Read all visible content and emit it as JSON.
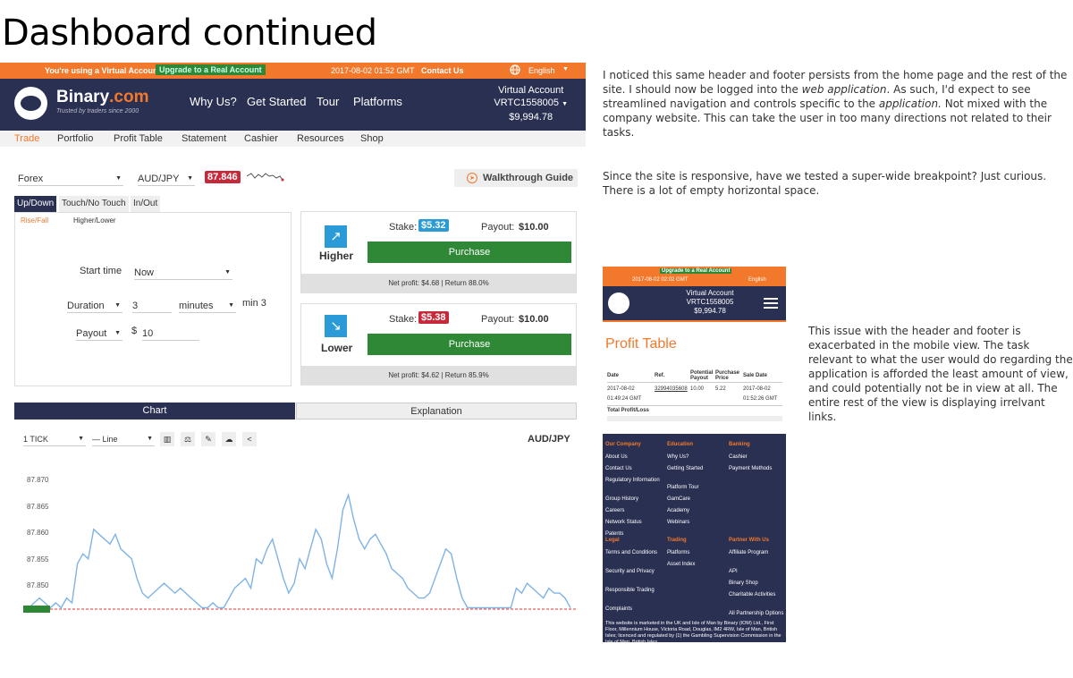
{
  "page_title": "Dashboard continued",
  "desktop": {
    "topbar": {
      "virtual_notice": "You're using a Virtual Account.",
      "upgrade": "Upgrade to a Real Account",
      "time": "2017-08-02 01:52 GMT",
      "contact": "Contact Us",
      "language": "English"
    },
    "header": {
      "brand_a": "Binary",
      "brand_b": ".com",
      "tagline": "Trusted by traders since 2000",
      "nav": [
        "Why Us?",
        "Get Started",
        "Tour",
        "Platforms"
      ],
      "account_label": "Virtual Account",
      "account_id": "VRTC1558005",
      "balance": "$9,994.78"
    },
    "menu": [
      "Trade",
      "Portfolio",
      "Profit Table",
      "Statement",
      "Cashier",
      "Resources",
      "Shop"
    ],
    "market": "Forex",
    "pair": "AUD/JPY",
    "spot": "87.846",
    "walkthrough": "Walkthrough Guide",
    "trade_tabs": [
      "Up/Down",
      "Touch/No Touch",
      "In/Out"
    ],
    "sub_tabs": [
      "Rise/Fall",
      "Higher/Lower"
    ],
    "form": {
      "start_time_label": "Start time",
      "start_time_value": "Now",
      "duration_label": "Duration",
      "duration_value": "3",
      "duration_unit": "minutes",
      "duration_min": "min 3",
      "payout_label": "Payout",
      "payout_currency": "$",
      "payout_value": "10"
    },
    "higher": {
      "label": "Higher",
      "stake_label": "Stake:",
      "stake": "$5.32",
      "payout_label": "Payout:",
      "payout": "$10.00",
      "button": "Purchase",
      "net": "Net profit: $4.68 | Return 88.0%"
    },
    "lower": {
      "label": "Lower",
      "stake_label": "Stake:",
      "stake": "$5.38",
      "payout_label": "Payout:",
      "payout": "$10.00",
      "button": "Purchase",
      "net": "Net profit: $4.62 | Return 85.9%"
    },
    "chart_tabs": [
      "Chart",
      "Explanation"
    ],
    "chart_tools": {
      "tick": "1 TICK",
      "line": "— Line",
      "pair": "AUD/JPY"
    },
    "chart_data": {
      "type": "line",
      "y_ticks": [
        "87.870",
        "87.865",
        "87.860",
        "87.855",
        "87.850"
      ],
      "ylim": [
        87.845,
        87.872
      ],
      "values": [
        87.846,
        87.846,
        87.847,
        87.848,
        87.847,
        87.846,
        87.847,
        87.846,
        87.848,
        87.847,
        87.855,
        87.857,
        87.856,
        87.862,
        87.861,
        87.86,
        87.859,
        87.861,
        87.858,
        87.857,
        87.856,
        87.852,
        87.849,
        87.848,
        87.849,
        87.85,
        87.851,
        87.85,
        87.849,
        87.85,
        87.849,
        87.848,
        87.847,
        87.846,
        87.846,
        87.847,
        87.846,
        87.846,
        87.848,
        87.85,
        87.851,
        87.852,
        87.85,
        87.856,
        87.855,
        87.858,
        87.86,
        87.856,
        87.852,
        87.849,
        87.851,
        87.856,
        87.854,
        87.858,
        87.862,
        87.86,
        87.855,
        87.852,
        87.858,
        87.866,
        87.869,
        87.864,
        87.86,
        87.858,
        87.86,
        87.861,
        87.859,
        87.857,
        87.854,
        87.853,
        87.852,
        87.85,
        87.849,
        87.848,
        87.848,
        87.849,
        87.852,
        87.855,
        87.858,
        87.857,
        87.852,
        87.848,
        87.846,
        87.846,
        87.846,
        87.846,
        87.846,
        87.846,
        87.846,
        87.846,
        87.846,
        87.85,
        87.849,
        87.851,
        87.85,
        87.849,
        87.848,
        87.85,
        87.849,
        87.849,
        87.848,
        87.846
      ]
    }
  },
  "notes": {
    "n1_a": "I noticed this same header and footer persists from the home page and the rest of the site. I should now be logged into the ",
    "n1_em1": "web application",
    "n1_b": ". As such, I'd expect to see streamlined navigation and controls specific to the ",
    "n1_em2": "application.",
    "n1_c": " Not mixed with the company website. This can take the user in too many directions not related to their tasks.",
    "n2": "Since the site is responsive, have we tested a super-wide breakpoint? Just curious. There is a lot of empty horizontal space.",
    "n3": "This issue with the header and footer is exacerbated in the mobile view. The task relevant to what the user would do regarding the application is afforded the least amount of view, and could potentially not be in view at all. The entire rest of the view is displaying irrelvant links."
  },
  "mobile": {
    "upgrade": "Upgrade to a Real Account",
    "time": "2017-08-02 02:02 GMT",
    "language": "English",
    "account_label": "Virtual Account",
    "account_id": "VRTC1558005",
    "balance": "$9,994.78",
    "section_title": "Profit Table",
    "table_headers": [
      "Date",
      "Ref.",
      "Potential Payout",
      "Purchase Price",
      "Sale Date"
    ],
    "row": [
      "2017-08-02",
      "32994035608",
      "10.00",
      "5.22",
      "2017-08-02"
    ],
    "row_time_a": "01:49:24 GMT",
    "row_time_b": "01:52:26 GMT",
    "total": "Total Profit/Loss",
    "footer": {
      "col1_h": "Our Company",
      "col1": [
        "About Us",
        "Contact Us",
        "Regulatory Information",
        "Group History",
        "Careers",
        "Network Status",
        "Patents"
      ],
      "col2_h": "Education",
      "col2": [
        "Why Us?",
        "Getting Started",
        "Platform Tour",
        "GamCare",
        "Academy",
        "Webinars"
      ],
      "col3_h": "Banking",
      "col3": [
        "Cashier",
        "Payment Methods"
      ],
      "col4_h": "Legal",
      "col4": [
        "Terms and Conditions",
        "Security and Privacy",
        "Responsible Trading",
        "Complaints"
      ],
      "col5_h": "Trading",
      "col5": [
        "Platforms",
        "Asset Index"
      ],
      "col6_h": "Partner With Us",
      "col6": [
        "Affiliate Program",
        "API",
        "Binary Shop",
        "Charitable Activities",
        "All Partnership Options"
      ],
      "legal": "This website is marketed in the UK and Isle of Man by Binary (IOM) Ltd., First Floor, Millennium House, Victoria Road, Douglas, IM2 4RW, Isle of Man, British Isles; licenced and regulated by (1) the Gambling Supervision Commission in the Isle of Man, British Isles"
    }
  }
}
